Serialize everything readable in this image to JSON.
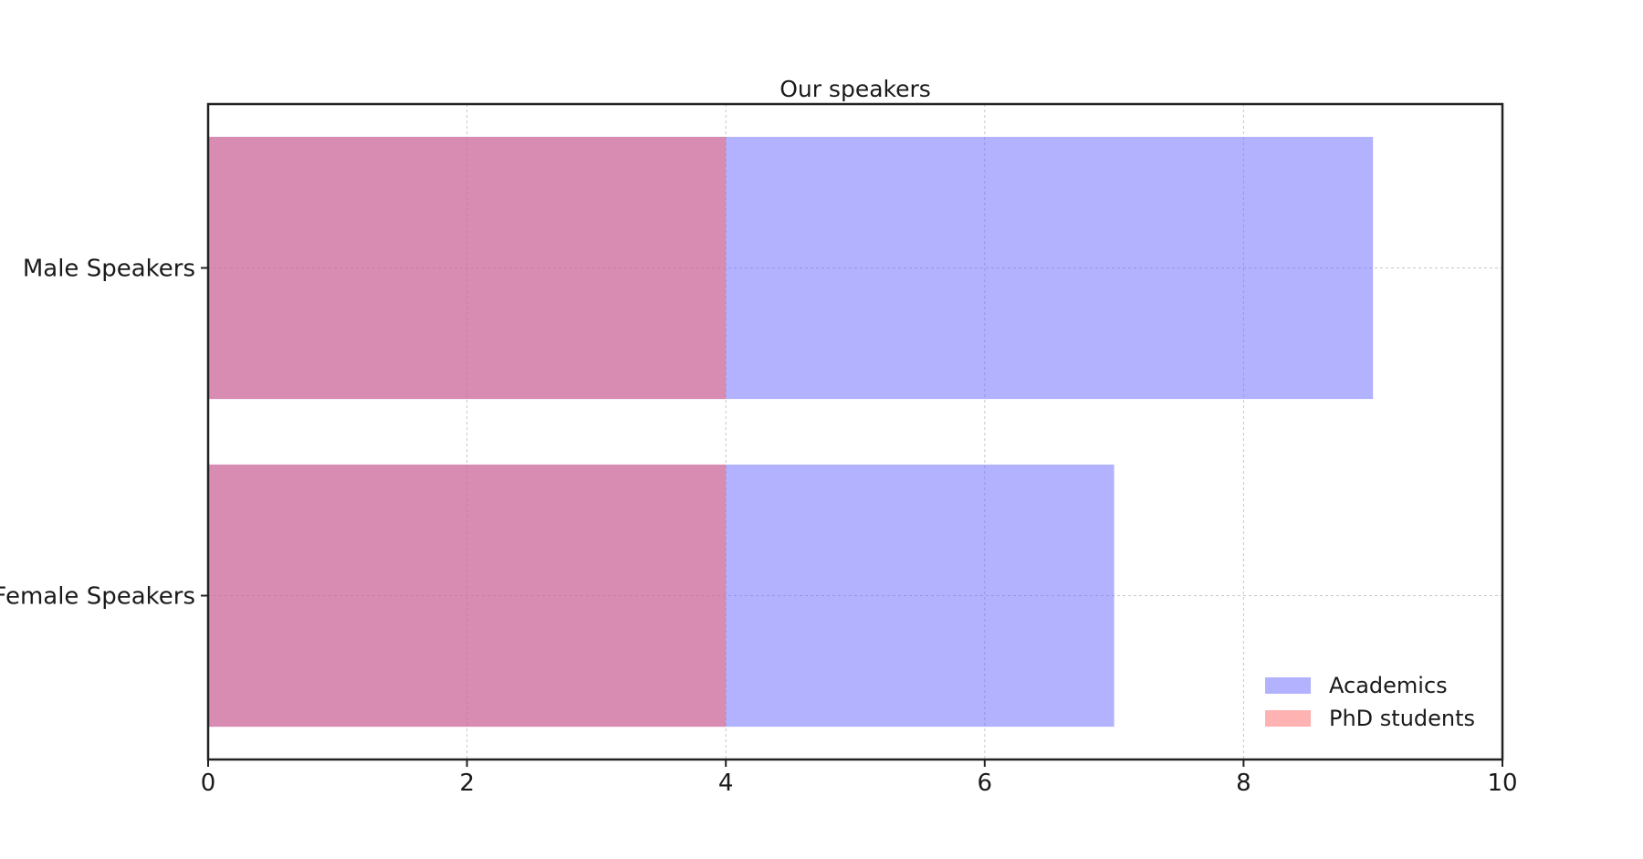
{
  "chart_data": {
    "type": "bar",
    "orientation": "horizontal",
    "overlay": true,
    "title": "Our speakers",
    "xlabel": "",
    "ylabel": "",
    "categories": [
      "Male Speakers",
      "Female Speakers"
    ],
    "series": [
      {
        "name": "Academics",
        "values": [
          9,
          7
        ],
        "color": "#6666ff",
        "alpha": 0.5
      },
      {
        "name": "PhD students",
        "values": [
          4,
          4
        ],
        "color": "#ff6666",
        "alpha": 0.5
      }
    ],
    "xlim": [
      0,
      10
    ],
    "xticks": [
      "0",
      "2",
      "4",
      "6",
      "8",
      "10"
    ],
    "grid": true,
    "legend_position": "lower-right"
  }
}
